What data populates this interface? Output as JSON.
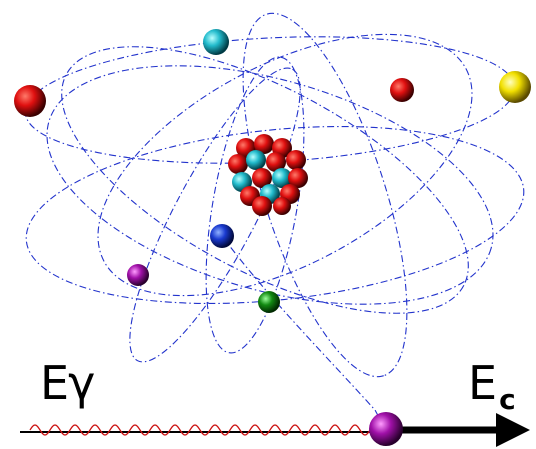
{
  "labels": {
    "photon_energy": "Eγ",
    "kinetic_energy_base": "E",
    "kinetic_energy_sub": "c"
  },
  "colors": {
    "orbit": "#2233cc",
    "photon_wave": "#cc1111",
    "proton": "#e01010",
    "neutron": "#22bbcc",
    "arrow": "#000000"
  },
  "icons": {
    "nucleus": "nucleus-cluster",
    "electron": "sphere",
    "photon": "wavy-line",
    "ejected_electron": "sphere-with-arrow"
  }
}
